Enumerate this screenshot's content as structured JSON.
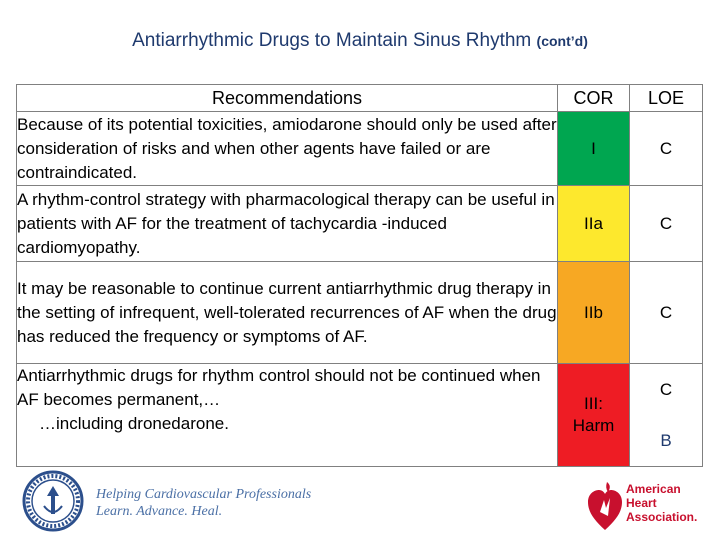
{
  "title": {
    "main": "Antiarrhythmic Drugs to Maintain Sinus Rhythm ",
    "suffix": "(cont’d)"
  },
  "table": {
    "headers": {
      "recommendations": "Recommendations",
      "cor": "COR",
      "loe": "LOE"
    },
    "rows": [
      {
        "text": "Because of its potential toxicities, amiodarone should only be used after consideration of risks and when other agents have failed or are contraindicated.",
        "cor": "I",
        "loe": "C",
        "cor_color": "#00a650"
      },
      {
        "text": "A rhythm-control strategy with pharmacological therapy can be useful in patients with AF for the treatment of tachycardia -induced cardiomyopathy.",
        "cor": "IIa",
        "loe": "C",
        "cor_color": "#fde82d"
      },
      {
        "text": "It may be reasonable to continue current antiarrhythmic drug therapy in the setting of infrequent, well-tolerated recurrences of AF when the drug has reduced the frequency or symptoms of AF.",
        "cor": "IIb",
        "loe": "C",
        "cor_color": "#f7a823"
      },
      {
        "text": "Antiarrhythmic drugs for rhythm control should not be continued when AF becomes permanent,…",
        "text2": "…including dronedarone.",
        "cor": "III: Harm",
        "loe": "C",
        "loe2": "B",
        "cor_color": "#ee1c24"
      }
    ]
  },
  "footer": {
    "slogan_line1": "Helping Cardiovascular Professionals",
    "slogan_line2": "Learn. Advance. Heal.",
    "aha_line1": "American",
    "aha_line2": "Heart",
    "aha_line3": "Association."
  },
  "icons": {
    "seal": "american-college-of-cardiology-seal",
    "aha_logo": "heart-torch-logo"
  }
}
